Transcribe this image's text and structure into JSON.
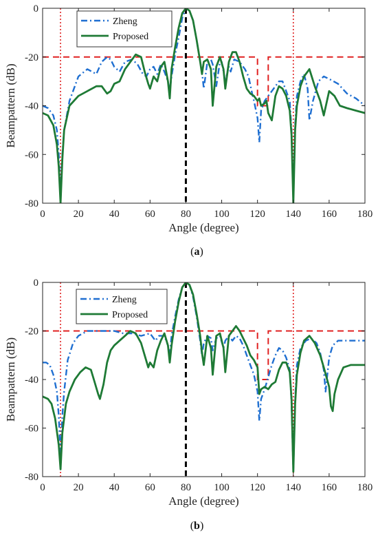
{
  "chart_data": [
    {
      "type": "line",
      "caption": "(a)",
      "xlabel": "Angle (degree)",
      "ylabel": "Beampattern (dB)",
      "xlim": [
        0,
        180
      ],
      "ylim": [
        -80,
        0
      ],
      "xticks": [
        0,
        20,
        40,
        60,
        80,
        100,
        120,
        140,
        160,
        180
      ],
      "yticks": [
        0,
        -20,
        -40,
        -60,
        -80
      ],
      "legend_position": "top-left",
      "colors": {
        "zheng": "#1f6fd1",
        "proposed": "#1e7a35",
        "mask": "#e02020",
        "marker": "#e02020",
        "target": "#000000"
      },
      "mask": {
        "x": [
          0,
          120,
          120,
          126,
          126,
          180
        ],
        "y": [
          -20,
          -20,
          -40,
          -40,
          -20,
          -20
        ]
      },
      "interference_angles": [
        10,
        140
      ],
      "target_angle": 80,
      "series": [
        {
          "name": "Zheng",
          "x": [
            0,
            3,
            6,
            8,
            9,
            10,
            11,
            12,
            15,
            20,
            25,
            30,
            33,
            36,
            38,
            40,
            43,
            46,
            50,
            53,
            56,
            58,
            60,
            62,
            64,
            66,
            68,
            70,
            71,
            72,
            74,
            76,
            78,
            80,
            82,
            84,
            86,
            88,
            89,
            90,
            92,
            94,
            95,
            97,
            99,
            100,
            102,
            104,
            105,
            107,
            110,
            113,
            115,
            117,
            118,
            120,
            121,
            122,
            124,
            126,
            128,
            130,
            132,
            134,
            136,
            138,
            139,
            140,
            141,
            142,
            144,
            146,
            148,
            149,
            151,
            154,
            157,
            160,
            165,
            170,
            175,
            180
          ],
          "y": [
            -40,
            -41,
            -44,
            -50,
            -60,
            -76,
            -60,
            -50,
            -38,
            -28,
            -25,
            -27,
            -22,
            -20,
            -21,
            -24,
            -26,
            -22,
            -21,
            -23,
            -27,
            -28,
            -25,
            -24,
            -27,
            -23,
            -26,
            -30,
            -34,
            -28,
            -19,
            -12,
            -4,
            0,
            -1,
            -5,
            -13,
            -22,
            -26,
            -33,
            -22,
            -21,
            -23,
            -32,
            -22,
            -22,
            -30,
            -24,
            -26,
            -21,
            -22,
            -25,
            -28,
            -35,
            -38,
            -45,
            -55,
            -42,
            -38,
            -36,
            -34,
            -32,
            -30,
            -30,
            -34,
            -38,
            -50,
            -78,
            -48,
            -36,
            -30,
            -27,
            -33,
            -46,
            -38,
            -30,
            -28,
            -29,
            -31,
            -35,
            -37,
            -40
          ]
        },
        {
          "name": "Proposed",
          "x": [
            0,
            3,
            6,
            8,
            9,
            10,
            11,
            12,
            15,
            20,
            25,
            30,
            33,
            35,
            36,
            38,
            40,
            43,
            46,
            49,
            52,
            55,
            57,
            59,
            60,
            62,
            64,
            66,
            68,
            70,
            71,
            72,
            74,
            76,
            78,
            80,
            82,
            84,
            86,
            88,
            89,
            90,
            92,
            94,
            95,
            97,
            99,
            101,
            102,
            104,
            106,
            108,
            110,
            112,
            114,
            116,
            118,
            120,
            121,
            122,
            124,
            125,
            126,
            128,
            130,
            132,
            134,
            136,
            138,
            139,
            140,
            141,
            142,
            144,
            146,
            149,
            152,
            155,
            157,
            160,
            163,
            166,
            170,
            175,
            180
          ],
          "y": [
            -43,
            -44,
            -48,
            -56,
            -65,
            -80,
            -62,
            -50,
            -40,
            -36,
            -34,
            -32,
            -32,
            -34,
            -35,
            -34,
            -31,
            -30,
            -25,
            -22,
            -19,
            -20,
            -26,
            -31,
            -33,
            -28,
            -30,
            -24,
            -22,
            -30,
            -37,
            -25,
            -16,
            -8,
            -2,
            0,
            -1,
            -5,
            -13,
            -22,
            -27,
            -22,
            -21,
            -25,
            -40,
            -24,
            -20,
            -25,
            -33,
            -22,
            -18,
            -18,
            -22,
            -28,
            -33,
            -35,
            -36,
            -38,
            -37,
            -40,
            -39,
            -38,
            -43,
            -46,
            -36,
            -32,
            -33,
            -36,
            -42,
            -52,
            -80,
            -50,
            -40,
            -32,
            -28,
            -25,
            -32,
            -38,
            -44,
            -34,
            -36,
            -40,
            -41,
            -42,
            -43
          ]
        }
      ]
    },
    {
      "type": "line",
      "caption": "(b)",
      "xlabel": "Angle (degree)",
      "ylabel": "Beampattern (dB)",
      "xlim": [
        0,
        180
      ],
      "ylim": [
        -80,
        0
      ],
      "xticks": [
        0,
        20,
        40,
        60,
        80,
        100,
        120,
        140,
        160,
        180
      ],
      "yticks": [
        0,
        -20,
        -40,
        -60,
        -80
      ],
      "legend_position": "top-center",
      "colors": {
        "zheng": "#1f6fd1",
        "proposed": "#1e7a35",
        "mask": "#e02020",
        "marker": "#e02020",
        "target": "#000000"
      },
      "mask": {
        "x": [
          0,
          120,
          120,
          126,
          126,
          180
        ],
        "y": [
          -20,
          -20,
          -40,
          -40,
          -20,
          -20
        ]
      },
      "interference_angles": [
        10,
        140
      ],
      "target_angle": 80,
      "series": [
        {
          "name": "Zheng",
          "x": [
            0,
            2,
            4,
            6,
            8,
            9,
            10,
            11,
            12,
            14,
            17,
            20,
            25,
            30,
            35,
            40,
            45,
            50,
            55,
            60,
            63,
            65,
            68,
            70,
            71,
            72,
            74,
            76,
            78,
            80,
            82,
            84,
            86,
            88,
            89,
            90,
            92,
            94,
            95,
            97,
            99,
            101,
            102,
            104,
            106,
            108,
            110,
            112,
            114,
            116,
            118,
            120,
            121,
            122,
            124,
            126,
            128,
            130,
            132,
            134,
            136,
            138,
            139,
            140,
            141,
            142,
            144,
            147,
            150,
            153,
            155,
            157,
            158,
            160,
            162,
            165,
            170,
            175,
            180
          ],
          "y": [
            -33,
            -33,
            -34,
            -38,
            -45,
            -55,
            -72,
            -55,
            -45,
            -32,
            -25,
            -22,
            -20,
            -20,
            -20,
            -20,
            -21,
            -21,
            -22,
            -21,
            -24,
            -22,
            -22,
            -26,
            -30,
            -22,
            -14,
            -7,
            -2,
            0,
            -1,
            -6,
            -14,
            -24,
            -30,
            -25,
            -22,
            -23,
            -28,
            -23,
            -22,
            -27,
            -24,
            -22,
            -24,
            -22,
            -23,
            -26,
            -30,
            -34,
            -38,
            -45,
            -57,
            -48,
            -44,
            -39,
            -34,
            -30,
            -27,
            -28,
            -31,
            -36,
            -50,
            -78,
            -48,
            -34,
            -27,
            -24,
            -23,
            -25,
            -29,
            -36,
            -45,
            -31,
            -26,
            -24,
            -24,
            -24,
            -24
          ]
        },
        {
          "name": "Proposed",
          "x": [
            0,
            3,
            5,
            7,
            9,
            10,
            11,
            13,
            15,
            18,
            21,
            24,
            27,
            29,
            31,
            32,
            34,
            36,
            38,
            40,
            43,
            46,
            49,
            52,
            55,
            57,
            59,
            60,
            62,
            64,
            66,
            68,
            70,
            71,
            72,
            74,
            76,
            78,
            80,
            82,
            84,
            86,
            88,
            89,
            90,
            92,
            94,
            95,
            97,
            99,
            101,
            102,
            104,
            106,
            108,
            110,
            112,
            114,
            116,
            118,
            120,
            121,
            122,
            124,
            126,
            128,
            130,
            132,
            134,
            136,
            138,
            139,
            140,
            141,
            142,
            144,
            146,
            149,
            152,
            155,
            157,
            160,
            161,
            162,
            163,
            165,
            168,
            172,
            176,
            180
          ],
          "y": [
            -47,
            -48,
            -50,
            -56,
            -67,
            -77,
            -62,
            -50,
            -45,
            -40,
            -37,
            -35,
            -36,
            -41,
            -46,
            -48,
            -42,
            -33,
            -28,
            -26,
            -24,
            -22,
            -20,
            -21,
            -25,
            -30,
            -35,
            -33,
            -35,
            -28,
            -24,
            -21,
            -26,
            -33,
            -26,
            -16,
            -8,
            -2,
            0,
            -1,
            -5,
            -13,
            -22,
            -29,
            -34,
            -22,
            -27,
            -38,
            -22,
            -21,
            -27,
            -37,
            -22,
            -20,
            -18,
            -20,
            -23,
            -26,
            -30,
            -32,
            -35,
            -46,
            -44,
            -43,
            -44,
            -42,
            -41,
            -36,
            -33,
            -33,
            -37,
            -48,
            -78,
            -50,
            -38,
            -29,
            -24,
            -22,
            -25,
            -30,
            -35,
            -43,
            -51,
            -53,
            -46,
            -40,
            -35,
            -34,
            -34,
            -34
          ]
        }
      ]
    }
  ]
}
